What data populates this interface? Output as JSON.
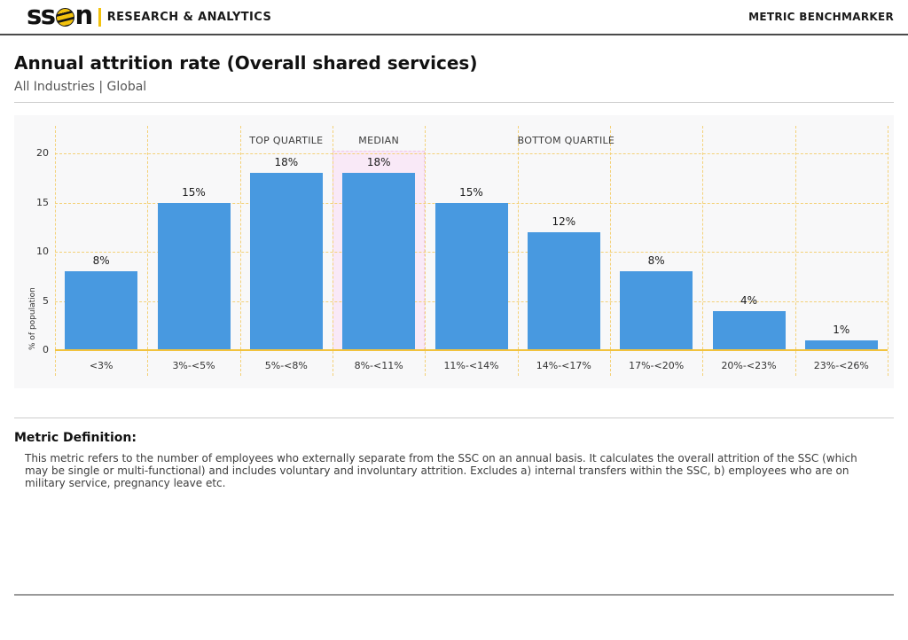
{
  "header": {
    "logo_left": "ss",
    "logo_right": "n",
    "logo_name": "sson",
    "division": "RESEARCH & ANALYTICS",
    "app_title": "METRIC BENCHMARKER"
  },
  "page": {
    "title": "Annual attrition rate (Overall shared services)",
    "subtitle": "All Industries | Global"
  },
  "chart_data": {
    "type": "bar",
    "title": "",
    "categories": [
      "<3%",
      "3%-<5%",
      "5%-<8%",
      "8%-<11%",
      "11%-<14%",
      "14%-<17%",
      "17%-<20%",
      "20%-<23%",
      "23%-<26%"
    ],
    "values": [
      8,
      15,
      18,
      18,
      15,
      12,
      8,
      4,
      1
    ],
    "value_labels": [
      "8%",
      "15%",
      "18%",
      "18%",
      "15%",
      "12%",
      "8%",
      "4%",
      "1%"
    ],
    "xlabel": "",
    "ylabel": "% of population",
    "yticks": [
      0,
      5,
      10,
      15,
      20
    ],
    "ylim": [
      0,
      23
    ],
    "grid": true,
    "annotations": [
      {
        "label": "TOP QUARTILE",
        "column": 2
      },
      {
        "label": "MEDIAN",
        "column": 3
      },
      {
        "label": "BOTTOM QUARTILE",
        "column": 5
      }
    ],
    "highlight_column": 3,
    "colors": {
      "bar": "#4899e0",
      "grid": "#f4d178",
      "axis": "#f2c33e",
      "highlight_bg": "#f9e9f7",
      "highlight_border": "#efc7e9",
      "plot_bg": "#f8f8f9",
      "tick_text": "#333333",
      "annotation_text": "#3a3a3a"
    }
  },
  "definition": {
    "heading": "Metric Definition:",
    "body": "This metric refers to the number of employees who externally separate from the SSC on an annual basis. It calculates the overall attrition of the SSC (which may be single or multi-functional) and includes voluntary and involuntary attrition. Excludes a) internal transfers within the SSC, b) employees who are on military service, pregnancy leave etc."
  }
}
